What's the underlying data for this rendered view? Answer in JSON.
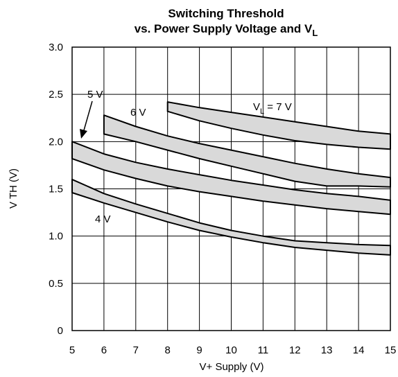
{
  "chart_data": {
    "type": "area",
    "title": {
      "line1": "Switching Threshold",
      "line2_prefix": "vs. Power Supply Voltage and V",
      "line2_sub": "L"
    },
    "xlabel": "V+ Supply (V)",
    "ylabel": "V TH (V)",
    "xlim": [
      5,
      15
    ],
    "ylim": [
      0,
      3.0
    ],
    "xticks": [
      "5",
      "6",
      "7",
      "8",
      "9",
      "10",
      "11",
      "12",
      "13",
      "14",
      "15"
    ],
    "yticks": [
      "0",
      "0.5",
      "1.0",
      "1.5",
      "2.0",
      "2.5",
      "3.0"
    ],
    "grid": true,
    "series": [
      {
        "name": "4 V",
        "color": "#d9d9d9",
        "upper": [
          [
            5,
            1.6
          ],
          [
            6,
            1.45
          ],
          [
            7,
            1.34
          ],
          [
            8,
            1.24
          ],
          [
            9,
            1.14
          ],
          [
            10,
            1.06
          ],
          [
            11,
            1.0
          ],
          [
            12,
            0.95
          ],
          [
            13,
            0.93
          ],
          [
            14,
            0.91
          ],
          [
            15,
            0.9
          ]
        ],
        "lower": [
          [
            5,
            1.46
          ],
          [
            6,
            1.35
          ],
          [
            7,
            1.25
          ],
          [
            8,
            1.15
          ],
          [
            9,
            1.06
          ],
          [
            10,
            0.99
          ],
          [
            11,
            0.93
          ],
          [
            12,
            0.88
          ],
          [
            13,
            0.85
          ],
          [
            14,
            0.82
          ],
          [
            15,
            0.8
          ]
        ]
      },
      {
        "name": "5 V",
        "color": "#d9d9d9",
        "upper": [
          [
            5,
            2.0
          ],
          [
            6,
            1.87
          ],
          [
            7,
            1.78
          ],
          [
            8,
            1.71
          ],
          [
            9,
            1.65
          ],
          [
            10,
            1.59
          ],
          [
            11,
            1.54
          ],
          [
            12,
            1.49
          ],
          [
            13,
            1.45
          ],
          [
            14,
            1.42
          ],
          [
            15,
            1.38
          ]
        ],
        "lower": [
          [
            5,
            1.82
          ],
          [
            6,
            1.7
          ],
          [
            7,
            1.61
          ],
          [
            8,
            1.53
          ],
          [
            9,
            1.47
          ],
          [
            10,
            1.42
          ],
          [
            11,
            1.37
          ],
          [
            12,
            1.33
          ],
          [
            13,
            1.29
          ],
          [
            14,
            1.26
          ],
          [
            15,
            1.23
          ]
        ]
      },
      {
        "name": "6 V",
        "color": "#d9d9d9",
        "upper": [
          [
            6,
            2.28
          ],
          [
            7,
            2.16
          ],
          [
            8,
            2.06
          ],
          [
            9,
            1.98
          ],
          [
            10,
            1.91
          ],
          [
            11,
            1.84
          ],
          [
            12,
            1.77
          ],
          [
            13,
            1.71
          ],
          [
            14,
            1.66
          ],
          [
            15,
            1.62
          ]
        ],
        "lower": [
          [
            6,
            2.08
          ],
          [
            7,
            2.0
          ],
          [
            8,
            1.91
          ],
          [
            9,
            1.82
          ],
          [
            10,
            1.74
          ],
          [
            11,
            1.66
          ],
          [
            12,
            1.58
          ],
          [
            13,
            1.53
          ],
          [
            14,
            1.53
          ],
          [
            15,
            1.52
          ]
        ]
      },
      {
        "name": "7 V",
        "color": "#d9d9d9",
        "upper": [
          [
            8,
            2.42
          ],
          [
            9,
            2.36
          ],
          [
            10,
            2.31
          ],
          [
            11,
            2.26
          ],
          [
            12,
            2.21
          ],
          [
            13,
            2.16
          ],
          [
            14,
            2.11
          ],
          [
            15,
            2.08
          ]
        ],
        "lower": [
          [
            8,
            2.32
          ],
          [
            9,
            2.22
          ],
          [
            10,
            2.14
          ],
          [
            11,
            2.07
          ],
          [
            12,
            2.01
          ],
          [
            13,
            1.97
          ],
          [
            14,
            1.94
          ],
          [
            15,
            1.92
          ]
        ]
      }
    ],
    "annotations": {
      "label_4v": "4 V",
      "label_5v": "5 V",
      "label_6v": "6 V",
      "label_7v_prefix": "V",
      "label_7v_sub": "L",
      "label_7v_suffix": " = 7 V"
    }
  }
}
